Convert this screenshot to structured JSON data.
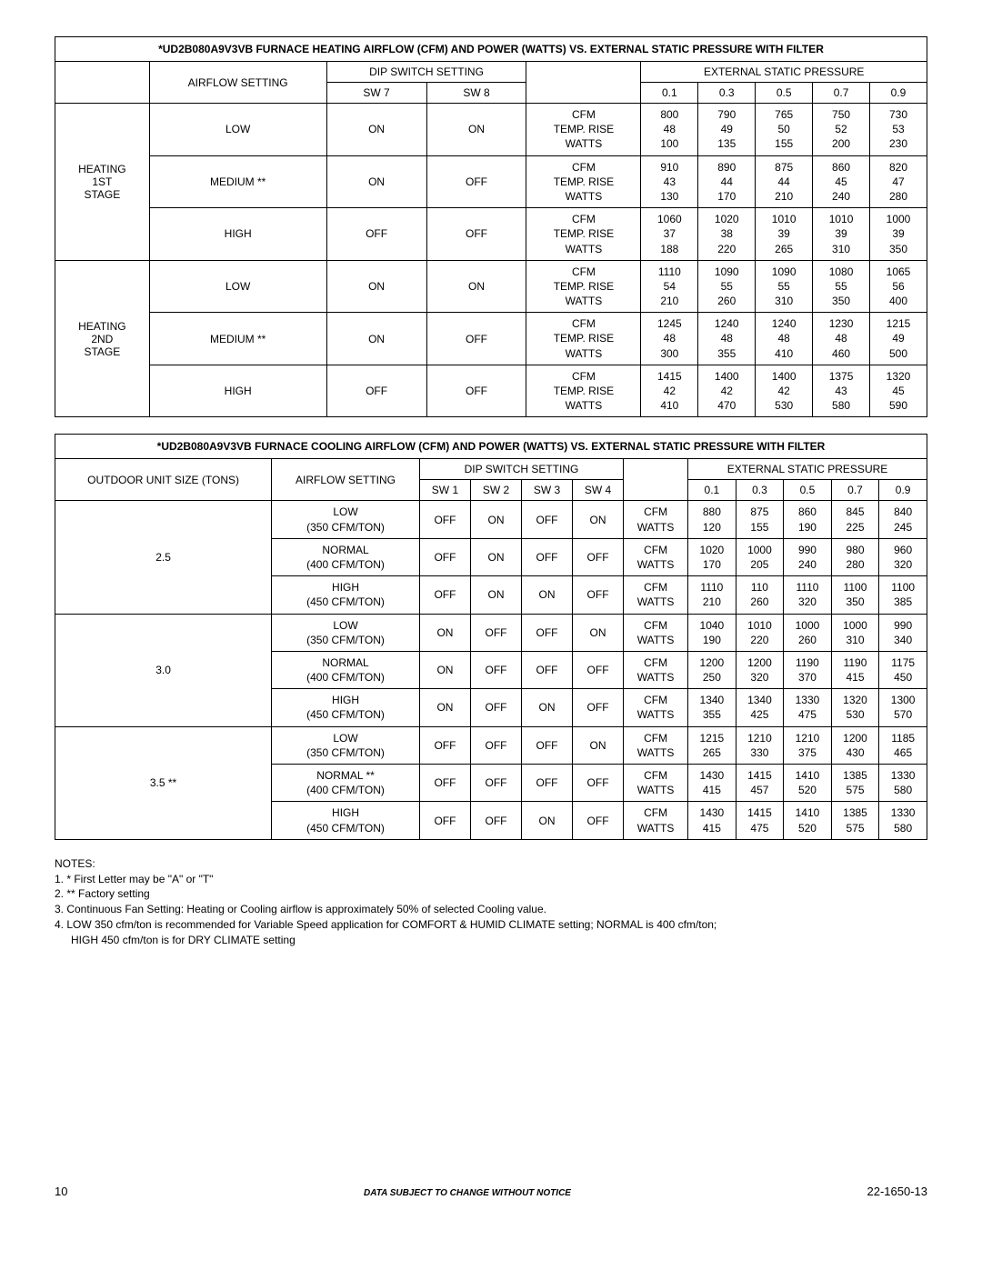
{
  "heating": {
    "title": "*UD2B080A9V3VB FURNACE HEATING AIRFLOW (CFM) AND POWER (WATTS) VS. EXTERNAL STATIC PRESSURE WITH FILTER",
    "hdr_airflow": "AIRFLOW SETTING",
    "hdr_dip": "DIP SWITCH SETTING",
    "hdr_esp": "EXTERNAL STATIC PRESSURE",
    "hdr_sw7": "SW 7",
    "hdr_sw8": "SW 8",
    "press": [
      "0.1",
      "0.3",
      "0.5",
      "0.7",
      "0.9"
    ],
    "metric_labels": [
      "CFM",
      "TEMP. RISE",
      "WATTS"
    ],
    "stages": [
      {
        "label": "HEATING 1ST STAGE",
        "rows": [
          {
            "setting": "LOW",
            "sw7": "ON",
            "sw8": "ON",
            "vals": [
              [
                "800",
                "48",
                "100"
              ],
              [
                "790",
                "49",
                "135"
              ],
              [
                "765",
                "50",
                "155"
              ],
              [
                "750",
                "52",
                "200"
              ],
              [
                "730",
                "53",
                "230"
              ]
            ]
          },
          {
            "setting": "MEDIUM **",
            "sw7": "ON",
            "sw8": "OFF",
            "vals": [
              [
                "910",
                "43",
                "130"
              ],
              [
                "890",
                "44",
                "170"
              ],
              [
                "875",
                "44",
                "210"
              ],
              [
                "860",
                "45",
                "240"
              ],
              [
                "820",
                "47",
                "280"
              ]
            ]
          },
          {
            "setting": "HIGH",
            "sw7": "OFF",
            "sw8": "OFF",
            "vals": [
              [
                "1060",
                "37",
                "188"
              ],
              [
                "1020",
                "38",
                "220"
              ],
              [
                "1010",
                "39",
                "265"
              ],
              [
                "1010",
                "39",
                "310"
              ],
              [
                "1000",
                "39",
                "350"
              ]
            ]
          }
        ]
      },
      {
        "label": "HEATING 2ND STAGE",
        "rows": [
          {
            "setting": "LOW",
            "sw7": "ON",
            "sw8": "ON",
            "vals": [
              [
                "1110",
                "54",
                "210"
              ],
              [
                "1090",
                "55",
                "260"
              ],
              [
                "1090",
                "55",
                "310"
              ],
              [
                "1080",
                "55",
                "350"
              ],
              [
                "1065",
                "56",
                "400"
              ]
            ]
          },
          {
            "setting": "MEDIUM **",
            "sw7": "ON",
            "sw8": "OFF",
            "vals": [
              [
                "1245",
                "48",
                "300"
              ],
              [
                "1240",
                "48",
                "355"
              ],
              [
                "1240",
                "48",
                "410"
              ],
              [
                "1230",
                "48",
                "460"
              ],
              [
                "1215",
                "49",
                "500"
              ]
            ]
          },
          {
            "setting": "HIGH",
            "sw7": "OFF",
            "sw8": "OFF",
            "vals": [
              [
                "1415",
                "42",
                "410"
              ],
              [
                "1400",
                "42",
                "470"
              ],
              [
                "1400",
                "42",
                "530"
              ],
              [
                "1375",
                "43",
                "580"
              ],
              [
                "1320",
                "45",
                "590"
              ]
            ]
          }
        ]
      }
    ]
  },
  "cooling": {
    "title": "*UD2B080A9V3VB FURNACE COOLING AIRFLOW (CFM) AND POWER (WATTS) VS. EXTERNAL STATIC PRESSURE WITH FILTER",
    "hdr_outdoor": "OUTDOOR UNIT SIZE (TONS)",
    "hdr_airflow": "AIRFLOW SETTING",
    "hdr_dip": "DIP SWITCH SETTING",
    "hdr_esp": "EXTERNAL STATIC PRESSURE",
    "hdr_sw1": "SW 1",
    "hdr_sw2": "SW 2",
    "hdr_sw3": "SW 3",
    "hdr_sw4": "SW 4",
    "press": [
      "0.1",
      "0.3",
      "0.5",
      "0.7",
      "0.9"
    ],
    "metric_labels": [
      "CFM",
      "WATTS"
    ],
    "groups": [
      {
        "size": "2.5",
        "rows": [
          {
            "setting": "LOW",
            "sub": "(350 CFM/TON)",
            "sw": [
              "OFF",
              "ON",
              "OFF",
              "ON"
            ],
            "vals": [
              [
                "880",
                "120"
              ],
              [
                "875",
                "155"
              ],
              [
                "860",
                "190"
              ],
              [
                "845",
                "225"
              ],
              [
                "840",
                "245"
              ]
            ]
          },
          {
            "setting": "NORMAL",
            "sub": "(400 CFM/TON)",
            "sw": [
              "OFF",
              "ON",
              "OFF",
              "OFF"
            ],
            "vals": [
              [
                "1020",
                "170"
              ],
              [
                "1000",
                "205"
              ],
              [
                "990",
                "240"
              ],
              [
                "980",
                "280"
              ],
              [
                "960",
                "320"
              ]
            ]
          },
          {
            "setting": "HIGH",
            "sub": "(450 CFM/TON)",
            "sw": [
              "OFF",
              "ON",
              "ON",
              "OFF"
            ],
            "vals": [
              [
                "1110",
                "210"
              ],
              [
                "110",
                "260"
              ],
              [
                "1110",
                "320"
              ],
              [
                "1100",
                "350"
              ],
              [
                "1100",
                "385"
              ]
            ]
          }
        ]
      },
      {
        "size": "3.0",
        "rows": [
          {
            "setting": "LOW",
            "sub": "(350 CFM/TON)",
            "sw": [
              "ON",
              "OFF",
              "OFF",
              "ON"
            ],
            "vals": [
              [
                "1040",
                "190"
              ],
              [
                "1010",
                "220"
              ],
              [
                "1000",
                "260"
              ],
              [
                "1000",
                "310"
              ],
              [
                "990",
                "340"
              ]
            ]
          },
          {
            "setting": "NORMAL",
            "sub": "(400 CFM/TON)",
            "sw": [
              "ON",
              "OFF",
              "OFF",
              "OFF"
            ],
            "vals": [
              [
                "1200",
                "250"
              ],
              [
                "1200",
                "320"
              ],
              [
                "1190",
                "370"
              ],
              [
                "1190",
                "415"
              ],
              [
                "1175",
                "450"
              ]
            ]
          },
          {
            "setting": "HIGH",
            "sub": "(450 CFM/TON)",
            "sw": [
              "ON",
              "OFF",
              "ON",
              "OFF"
            ],
            "vals": [
              [
                "1340",
                "355"
              ],
              [
                "1340",
                "425"
              ],
              [
                "1330",
                "475"
              ],
              [
                "1320",
                "530"
              ],
              [
                "1300",
                "570"
              ]
            ]
          }
        ]
      },
      {
        "size": "3.5 **",
        "rows": [
          {
            "setting": "LOW",
            "sub": "(350 CFM/TON)",
            "sw": [
              "OFF",
              "OFF",
              "OFF",
              "ON"
            ],
            "vals": [
              [
                "1215",
                "265"
              ],
              [
                "1210",
                "330"
              ],
              [
                "1210",
                "375"
              ],
              [
                "1200",
                "430"
              ],
              [
                "1185",
                "465"
              ]
            ]
          },
          {
            "setting": "NORMAL **",
            "sub": "(400 CFM/TON)",
            "sw": [
              "OFF",
              "OFF",
              "OFF",
              "OFF"
            ],
            "vals": [
              [
                "1430",
                "415"
              ],
              [
                "1415",
                "457"
              ],
              [
                "1410",
                "520"
              ],
              [
                "1385",
                "575"
              ],
              [
                "1330",
                "580"
              ]
            ]
          },
          {
            "setting": "HIGH",
            "sub": "(450 CFM/TON)",
            "sw": [
              "OFF",
              "OFF",
              "ON",
              "OFF"
            ],
            "vals": [
              [
                "1430",
                "415"
              ],
              [
                "1415",
                "475"
              ],
              [
                "1410",
                "520"
              ],
              [
                "1385",
                "575"
              ],
              [
                "1330",
                "580"
              ]
            ]
          }
        ]
      }
    ]
  },
  "notes": {
    "title": "NOTES:",
    "lines": [
      "1. * First Letter may be \"A\" or \"T\"",
      "2. ** Factory setting",
      "3. Continuous Fan Setting: Heating or Cooling airflow is approximately 50% of selected Cooling value.",
      "4. LOW 350 cfm/ton is recommended for Variable Speed application for COMFORT & HUMID CLIMATE setting; NORMAL is 400 cfm/ton;",
      "HIGH 450 cfm/ton is for DRY CLIMATE setting"
    ]
  },
  "footer": {
    "page": "10",
    "center": "DATA SUBJECT TO CHANGE WITHOUT NOTICE",
    "docnum": "22-1650-13"
  },
  "colors": {
    "border": "#000000",
    "text": "#000000",
    "background": "#ffffff"
  },
  "typography": {
    "base_font": "Arial, Helvetica, sans-serif",
    "base_size_pt": 9,
    "title_weight": "bold"
  }
}
